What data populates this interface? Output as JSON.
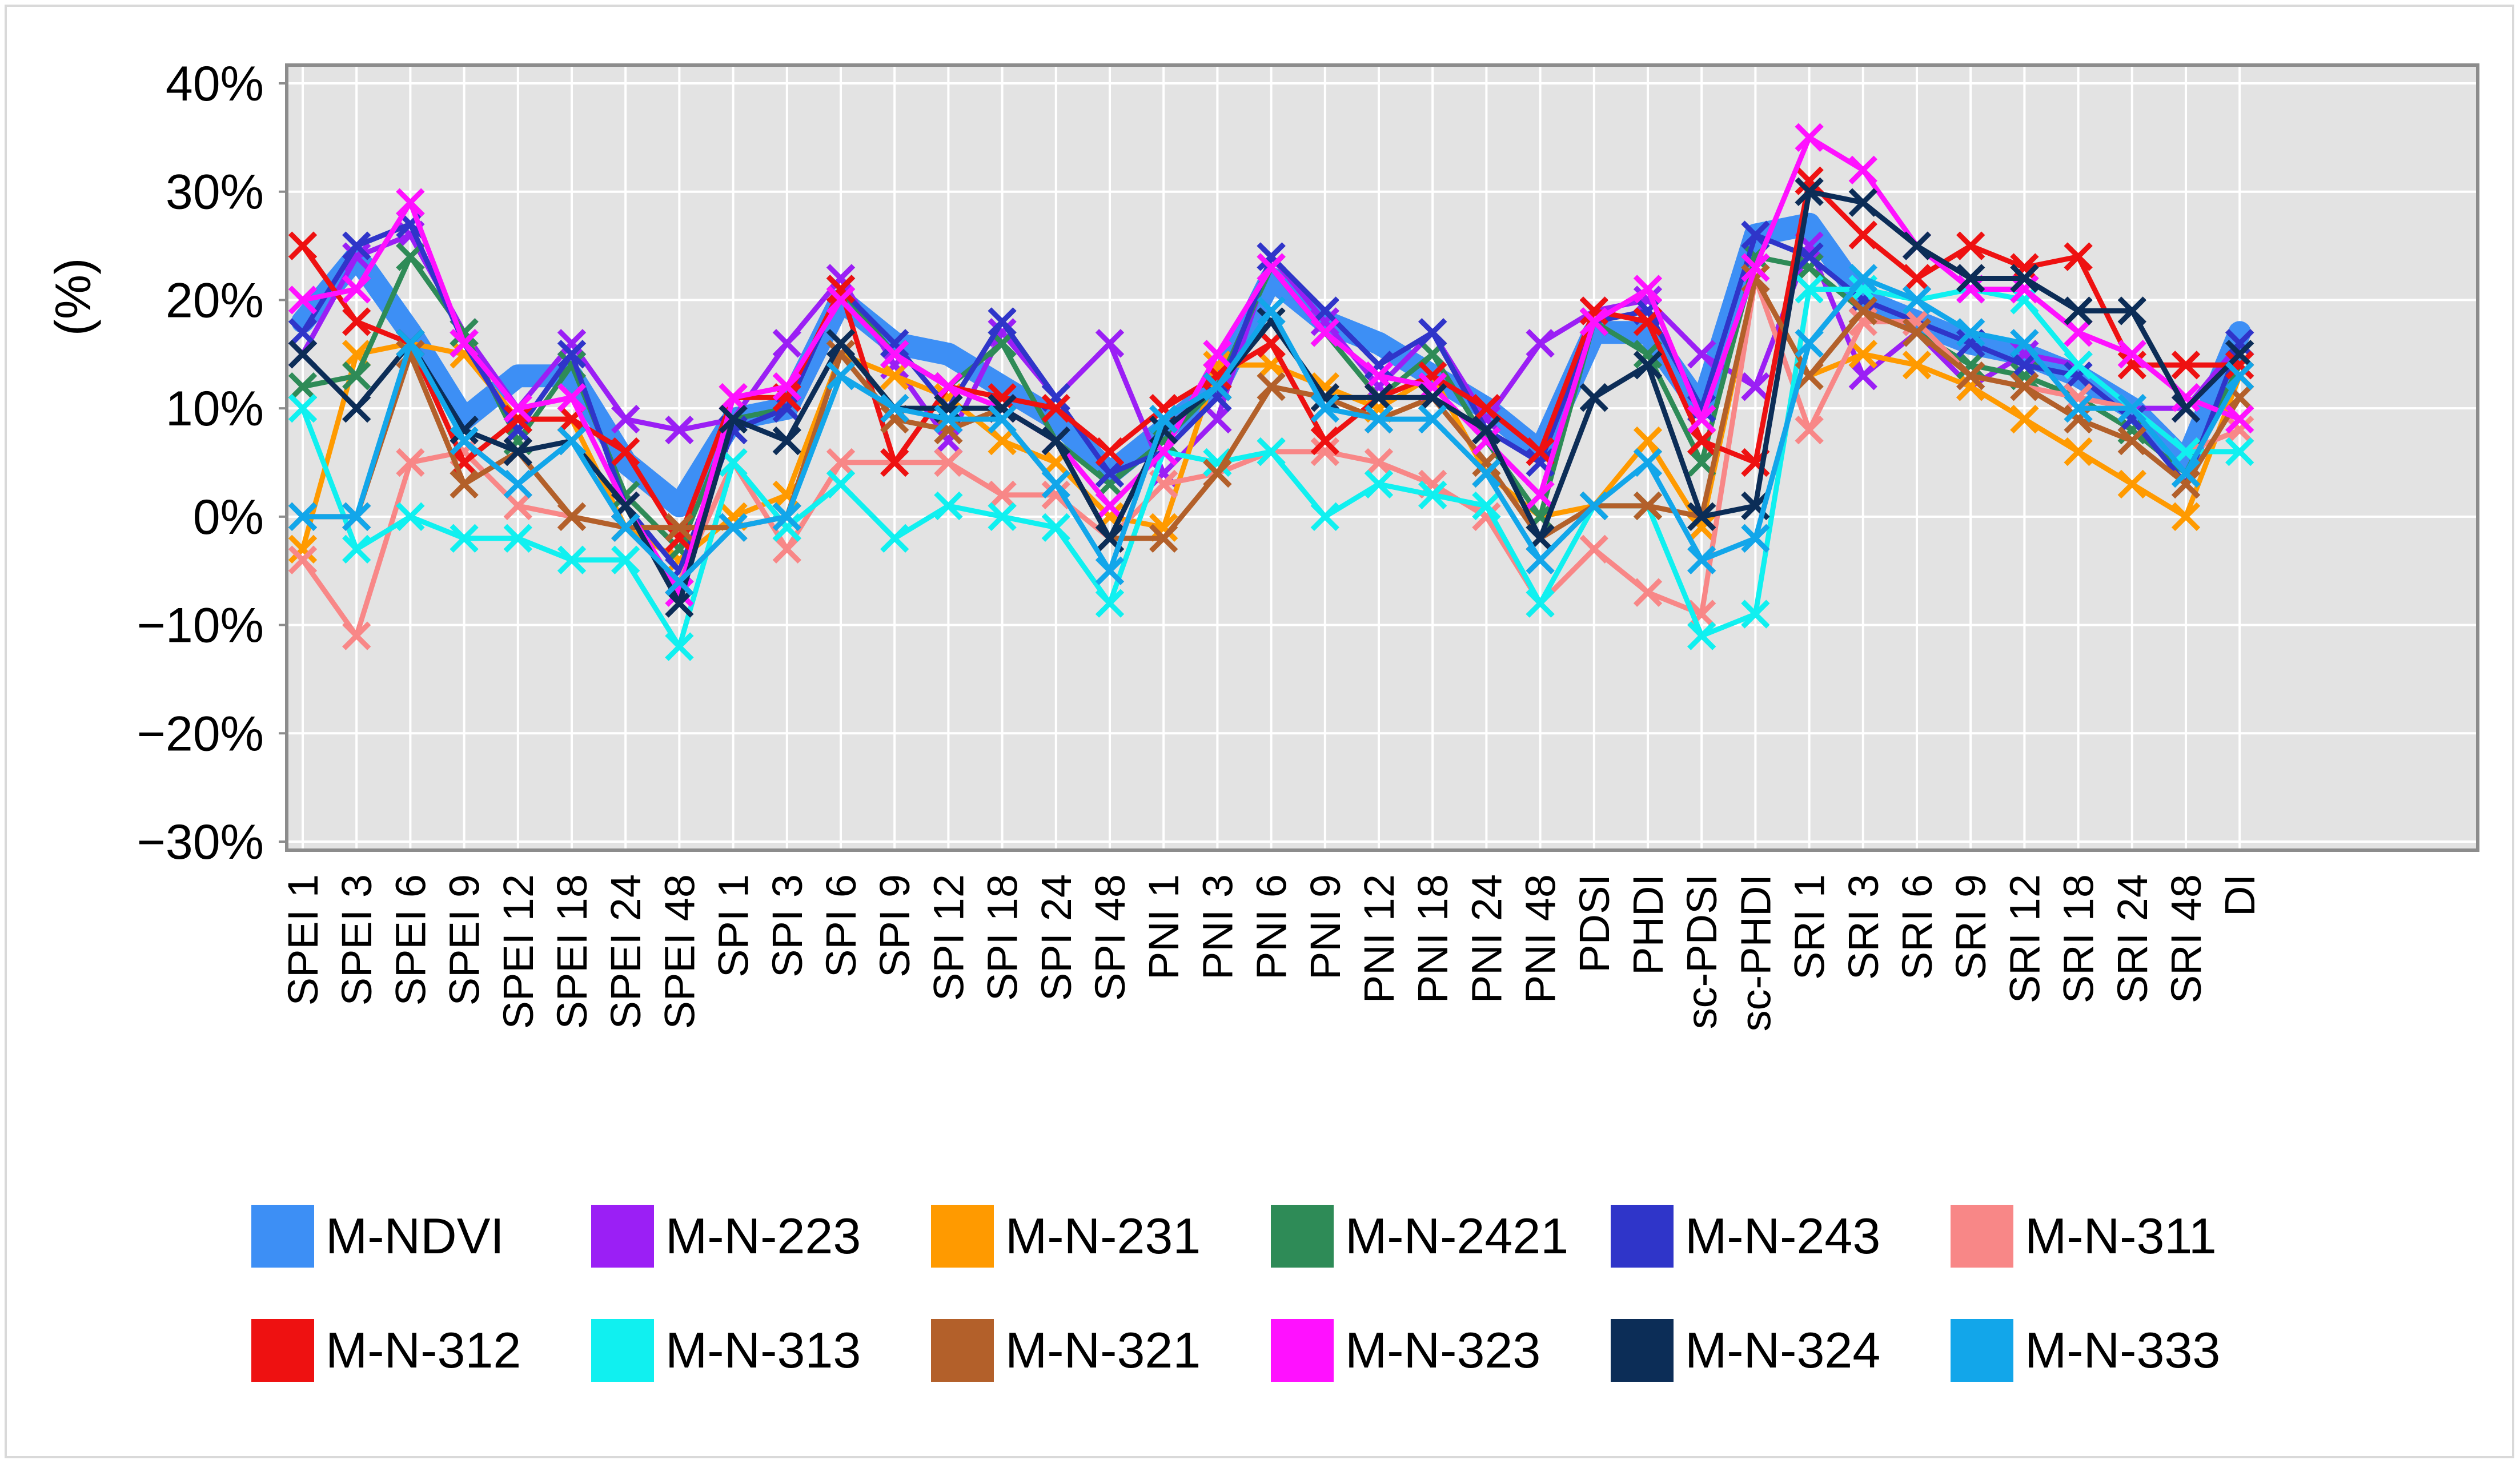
{
  "chart_data": {
    "type": "line",
    "title": "",
    "xlabel": "",
    "ylabel": "(%)",
    "ylim": [
      -30,
      40
    ],
    "yticks": [
      40,
      30,
      20,
      10,
      0,
      -10,
      -20,
      -30
    ],
    "ytick_labels": [
      "40%",
      "30%",
      "20%",
      "10%",
      "0%",
      "−10%",
      "−20%",
      "−30%"
    ],
    "grid": true,
    "legend_position": "bottom",
    "categories": [
      "SPEI 1",
      "SPEI 3",
      "SPEI 6",
      "SPEI 9",
      "SPEI 12",
      "SPEI 18",
      "SPEI 24",
      "SPEI 48",
      "SPI 1",
      "SPI 3",
      "SPI 6",
      "SPI 9",
      "SPI 12",
      "SPI 18",
      "SPI 24",
      "SPI 48",
      "PNI 1",
      "PNI 3",
      "PNI 6",
      "PNI 9",
      "PNI 12",
      "PNI 18",
      "PNI 24",
      "PNI 48",
      "PDSI",
      "PHDI",
      "sc-PDSI",
      "sc-PHDI",
      "SRI 1",
      "SRI 3",
      "SRI 6",
      "SRI 9",
      "SRI 12",
      "SRI 18",
      "SRI 24",
      "SRI 48",
      "DI"
    ],
    "series": [
      {
        "name": "M-NDVI",
        "color": "#3d8ff5",
        "values": [
          18,
          24,
          17,
          9,
          13,
          13,
          5,
          1,
          9,
          10,
          20,
          16,
          15,
          12,
          9,
          4,
          8,
          12,
          22,
          18,
          16,
          13,
          10,
          6,
          17,
          17,
          10,
          26,
          27,
          20,
          18,
          16,
          15,
          13,
          10,
          5,
          17
        ]
      },
      {
        "name": "M-N-223",
        "color": "#9b1ff5",
        "values": [
          15,
          24,
          26,
          17,
          10,
          16,
          9,
          8,
          9,
          16,
          22,
          14,
          7,
          17,
          11,
          16,
          4,
          9,
          24,
          18,
          12,
          17,
          9,
          16,
          19,
          20,
          15,
          12,
          25,
          13,
          17,
          12,
          15,
          14,
          10,
          10,
          16
        ]
      },
      {
        "name": "M-N-231",
        "color": "#ff9a00",
        "values": [
          -3,
          15,
          16,
          15,
          9,
          9,
          -1,
          -4,
          0,
          2,
          15,
          13,
          11,
          7,
          5,
          0,
          -1,
          14,
          14,
          12,
          10,
          13,
          4,
          0,
          1,
          7,
          -1,
          22,
          13,
          15,
          14,
          12,
          9,
          6,
          3,
          0,
          13
        ]
      },
      {
        "name": "M-N-2421",
        "color": "#2e8b57",
        "values": [
          12,
          13,
          24,
          17,
          7,
          14,
          2,
          -3,
          9,
          10,
          21,
          15,
          12,
          16,
          7,
          3,
          7,
          12,
          23,
          17,
          11,
          15,
          7,
          0,
          18,
          15,
          5,
          24,
          23,
          19,
          17,
          14,
          13,
          11,
          8,
          4,
          14
        ]
      },
      {
        "name": "M-N-243",
        "color": "#2f35c9",
        "values": [
          17,
          25,
          27,
          16,
          8,
          15,
          1,
          -5,
          8,
          10,
          21,
          16,
          10,
          18,
          11,
          4,
          6,
          11,
          24,
          19,
          14,
          17,
          8,
          5,
          18,
          19,
          10,
          26,
          24,
          20,
          18,
          16,
          14,
          13,
          9,
          3,
          16
        ]
      },
      {
        "name": "M-N-311",
        "color": "#f88787",
        "values": [
          -4,
          -11,
          5,
          6,
          1,
          0,
          -1,
          -6,
          5,
          -3,
          5,
          5,
          5,
          2,
          2,
          -2,
          3,
          4,
          6,
          6,
          5,
          3,
          0,
          -8,
          -3,
          -7,
          -9,
          22,
          8,
          18,
          18,
          13,
          12,
          11,
          10,
          6,
          8
        ]
      },
      {
        "name": "M-N-312",
        "color": "#ee1111",
        "values": [
          25,
          18,
          16,
          5,
          9,
          9,
          6,
          -2,
          11,
          11,
          21,
          5,
          12,
          11,
          10,
          6,
          10,
          13,
          16,
          7,
          11,
          13,
          10,
          6,
          19,
          18,
          7,
          5,
          31,
          26,
          22,
          25,
          23,
          24,
          14,
          14,
          14
        ]
      },
      {
        "name": "M-N-313",
        "color": "#10f0f0",
        "values": [
          10,
          -3,
          0,
          -2,
          -2,
          -4,
          -4,
          -12,
          5,
          -1,
          3,
          -2,
          1,
          0,
          -1,
          -8,
          6,
          5,
          6,
          0,
          3,
          2,
          1,
          -8,
          1,
          1,
          -11,
          -9,
          21,
          21,
          20,
          21,
          20,
          14,
          10,
          6,
          6
        ]
      },
      {
        "name": "M-N-321",
        "color": "#b3602a",
        "values": [
          0,
          0,
          15,
          3,
          6,
          0,
          -1,
          -1,
          -1,
          0,
          15,
          9,
          8,
          10,
          7,
          -2,
          -2,
          4,
          12,
          11,
          9,
          11,
          5,
          -2,
          1,
          1,
          0,
          22,
          13,
          19,
          17,
          13,
          12,
          9,
          7,
          3,
          11
        ]
      },
      {
        "name": "M-N-323",
        "color": "#ff11ff",
        "values": [
          20,
          21,
          29,
          16,
          10,
          11,
          1,
          -7,
          11,
          12,
          20,
          15,
          12,
          10,
          7,
          1,
          6,
          15,
          23,
          17,
          13,
          12,
          7,
          2,
          18,
          21,
          9,
          23,
          35,
          32,
          25,
          21,
          21,
          17,
          15,
          11,
          9
        ]
      },
      {
        "name": "M-N-324",
        "color": "#0c2d57",
        "values": [
          15,
          10,
          16,
          8,
          6,
          7,
          1,
          -8,
          9,
          7,
          16,
          10,
          10,
          10,
          7,
          -2,
          8,
          12,
          18,
          11,
          11,
          11,
          8,
          -2,
          11,
          14,
          0,
          1,
          30,
          29,
          25,
          22,
          22,
          19,
          19,
          10,
          15
        ]
      },
      {
        "name": "M-N-333",
        "color": "#12a6ea",
        "values": [
          0,
          0,
          16,
          7,
          3,
          7,
          -1,
          -6,
          -1,
          0,
          13,
          10,
          9,
          9,
          3,
          -5,
          9,
          12,
          19,
          10,
          9,
          9,
          4,
          -4,
          1,
          5,
          -4,
          -2,
          16,
          22,
          20,
          17,
          16,
          10,
          10,
          4,
          13
        ]
      }
    ]
  }
}
